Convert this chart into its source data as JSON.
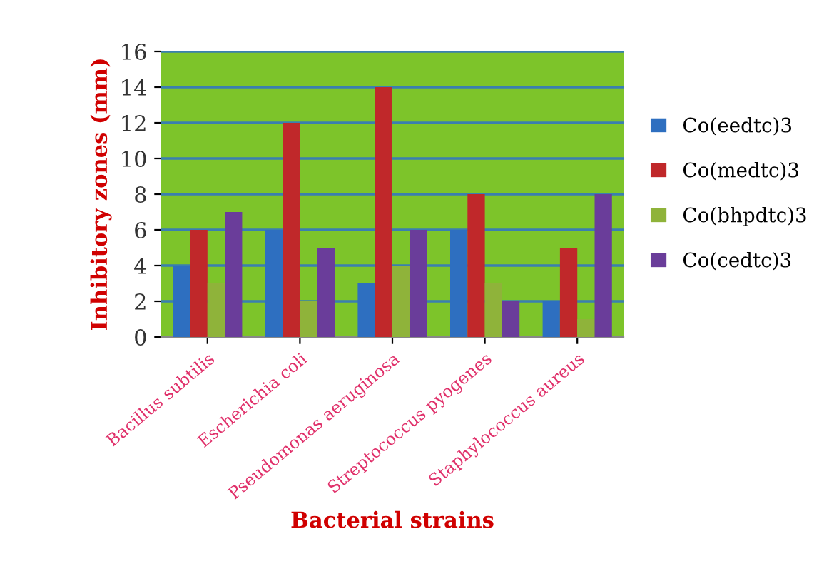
{
  "chart_data": {
    "type": "bar",
    "xlabel": "Bacterial strains",
    "ylabel": "Inhibitory zones (mm)",
    "categories": [
      "Bacillus subtilis",
      "Escherichia coli",
      "Pseudomonas aeruginosa",
      "Streptococcus pyogenes",
      "Staphylococcus aureus"
    ],
    "series": [
      {
        "name": "Co(eedtc)3",
        "color": "#2e6fc0",
        "values": [
          4,
          6,
          3,
          6,
          2
        ]
      },
      {
        "name": "Co(medtc)3",
        "color": "#c0282a",
        "values": [
          6,
          12,
          14,
          8,
          5
        ]
      },
      {
        "name": "Co(bhpdtc)3",
        "color": "#8fb33a",
        "values": [
          3,
          2,
          4,
          3,
          1
        ]
      },
      {
        "name": "Co(cedtc)3",
        "color": "#6a3d9a",
        "values": [
          7,
          5,
          6,
          2,
          8
        ]
      }
    ],
    "ylim": [
      0,
      16
    ],
    "yticks": [
      0,
      2,
      4,
      6,
      8,
      10,
      12,
      14,
      16
    ],
    "grid": "y",
    "legend": "right"
  }
}
